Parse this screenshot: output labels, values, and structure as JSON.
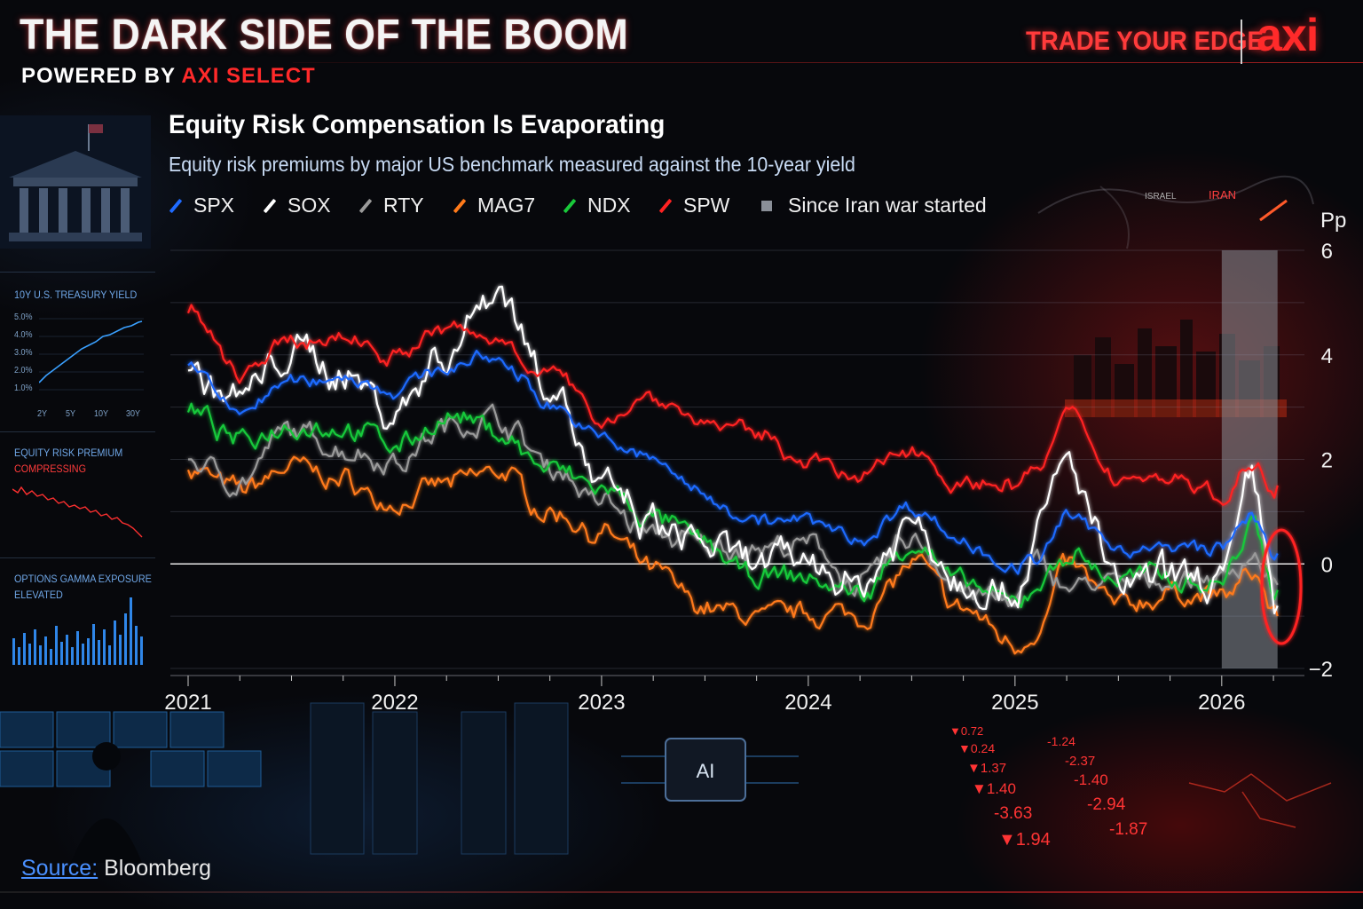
{
  "header": {
    "title": "THE DARK SIDE OF THE BOOM",
    "powered_prefix": "POWERED BY ",
    "powered_brand": "AXI SELECT",
    "tagline": "TRADE YOUR EDGE",
    "logo": "axi"
  },
  "colors": {
    "accent": "#ff2a2a",
    "SPX": "#1f6bff",
    "SOX": "#ffffff",
    "RTY": "#9a9a9a",
    "MAG7": "#ff7a1a",
    "NDX": "#19c93a",
    "SPW": "#ff2222",
    "shade": "#8a8f98"
  },
  "side_panels": {
    "yield": {
      "label": "10Y U.S. TREASURY YIELD",
      "y_ticks": [
        "5.0%",
        "4.0%",
        "3.0%",
        "2.0%",
        "1.0%"
      ],
      "x_ticks": [
        "2Y",
        "5Y",
        "10Y",
        "30Y"
      ]
    },
    "erp": {
      "label_1": "EQUITY RISK PREMIUM",
      "label_2": "COMPRESSING"
    },
    "gamma": {
      "label_1": "OPTIONS GAMMA EXPOSURE",
      "label_2": "ELEVATED"
    }
  },
  "map_labels": {
    "israel": "ISRAEL",
    "iran": "IRAN"
  },
  "bottom_scene": {
    "chip": "AI",
    "ticker": [
      "▼0.72",
      "▼0.24",
      "-1.24",
      "▼1.37",
      "-2.37",
      "▼1.40",
      "-1.40",
      "-3.63",
      "-2.94",
      "▼1.94",
      "-1.87"
    ]
  },
  "source": {
    "label": "Source:",
    "value": "Bloomberg"
  },
  "chart_data": {
    "type": "line",
    "title": "Equity Risk Compensation Is Evaporating",
    "subtitle": "Equity risk premiums by major US benchmark measured against the 10-year yield",
    "ylabel": "Pp",
    "xlabel": "",
    "ylim": [
      -2,
      6
    ],
    "y_ticks": [
      -2,
      0,
      2,
      4,
      6
    ],
    "xlim": [
      2021.0,
      2026.4
    ],
    "x_ticks": [
      2021,
      2022,
      2023,
      2024,
      2025,
      2026
    ],
    "grid": true,
    "legend_position": "top-left",
    "legend": [
      "SPX",
      "SOX",
      "RTY",
      "MAG7",
      "NDX",
      "SPW",
      "Since Iran war started"
    ],
    "shaded_region": {
      "label": "Since Iran war started",
      "x": [
        2026.0,
        2026.27
      ]
    },
    "x": [
      2021.0,
      2021.25,
      2021.5,
      2021.75,
      2022.0,
      2022.25,
      2022.5,
      2022.75,
      2023.0,
      2023.25,
      2023.5,
      2023.75,
      2024.0,
      2024.25,
      2024.5,
      2024.75,
      2025.0,
      2025.12,
      2025.25,
      2025.5,
      2025.75,
      2026.0,
      2026.15,
      2026.27
    ],
    "series": [
      {
        "name": "SPX",
        "values": [
          3.8,
          2.9,
          3.5,
          3.6,
          3.3,
          3.8,
          3.9,
          3.1,
          2.4,
          2.0,
          1.3,
          0.9,
          0.8,
          0.5,
          1.1,
          0.4,
          0.0,
          0.1,
          0.9,
          0.3,
          0.3,
          0.3,
          0.9,
          0.2
        ]
      },
      {
        "name": "SOX",
        "values": [
          3.7,
          3.1,
          4.0,
          3.7,
          3.0,
          4.1,
          5.3,
          3.5,
          1.4,
          0.6,
          0.3,
          -0.1,
          0.0,
          -0.3,
          0.8,
          -0.3,
          -0.5,
          0.7,
          2.0,
          -0.4,
          -0.3,
          -0.2,
          1.6,
          -0.8
        ]
      },
      {
        "name": "RTY",
        "values": [
          2.0,
          1.6,
          2.5,
          2.2,
          2.0,
          2.6,
          2.8,
          1.9,
          1.2,
          0.6,
          0.3,
          0.3,
          0.3,
          -0.4,
          0.5,
          -0.5,
          -0.8,
          0.0,
          -0.4,
          -0.4,
          -0.3,
          -0.3,
          0.2,
          -0.4
        ]
      },
      {
        "name": "MAG7",
        "values": [
          1.8,
          1.4,
          1.9,
          1.6,
          1.1,
          1.5,
          1.8,
          1.0,
          0.6,
          -0.2,
          -0.8,
          -1.0,
          -0.9,
          -1.0,
          0.0,
          -0.9,
          -1.5,
          -1.2,
          0.0,
          -0.8,
          -0.6,
          -0.6,
          -0.2,
          -1.0
        ]
      },
      {
        "name": "NDX",
        "values": [
          2.9,
          2.3,
          2.7,
          2.6,
          2.3,
          2.8,
          2.5,
          1.8,
          1.4,
          0.8,
          0.4,
          -0.3,
          -0.3,
          -0.6,
          0.4,
          -0.4,
          -0.8,
          -0.4,
          0.2,
          -0.3,
          -0.2,
          -0.3,
          0.8,
          -0.5
        ]
      },
      {
        "name": "SPW",
        "values": [
          4.8,
          3.6,
          4.2,
          4.3,
          4.0,
          4.5,
          4.3,
          3.6,
          2.8,
          3.2,
          2.7,
          2.5,
          2.0,
          1.6,
          2.3,
          1.5,
          1.5,
          1.8,
          2.8,
          1.6,
          1.7,
          1.3,
          1.9,
          1.5
        ]
      }
    ]
  }
}
